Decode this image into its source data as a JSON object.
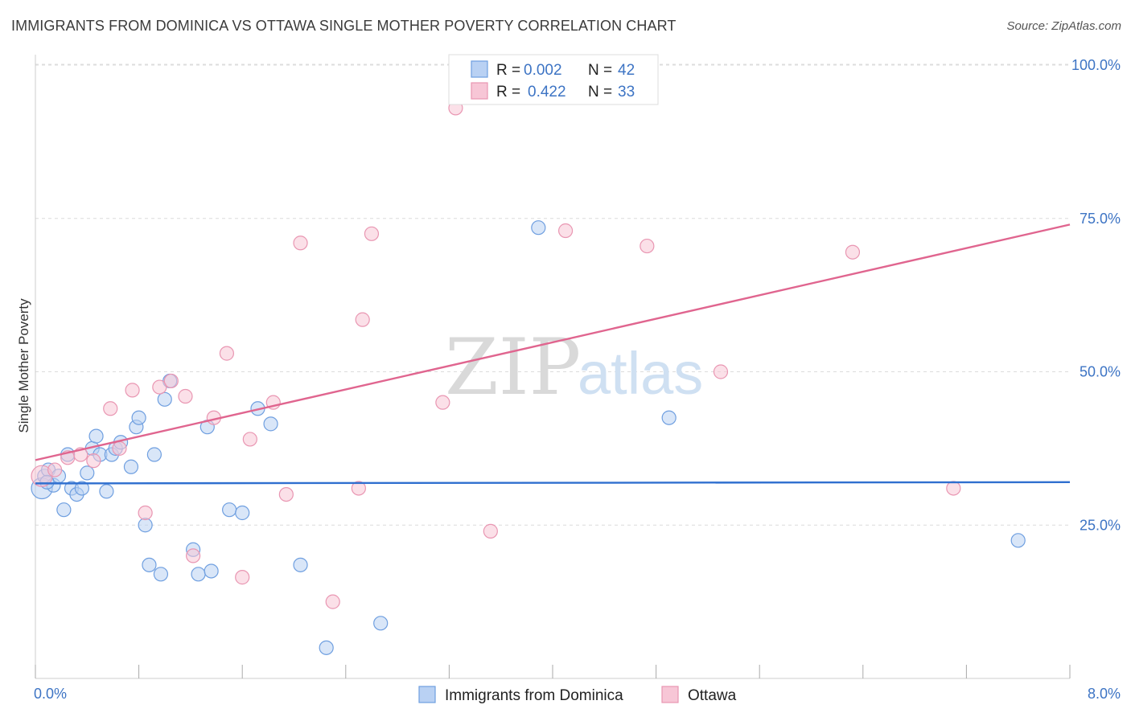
{
  "title": "IMMIGRANTS FROM DOMINICA VS OTTAWA SINGLE MOTHER POVERTY CORRELATION CHART",
  "source": "Source: ZipAtlas.com",
  "chart_data": {
    "type": "scatter",
    "ylabel": "Single Mother Poverty",
    "xlim": [
      0,
      8.0
    ],
    "ylim": [
      0,
      102
    ],
    "x_tick_labels": [
      "0.0%",
      "8.0%"
    ],
    "y_ticks": [
      25,
      50,
      75,
      100
    ],
    "y_tick_labels": [
      "25.0%",
      "50.0%",
      "75.0%",
      "100.0%"
    ],
    "grid": true,
    "watermark": {
      "zip": "ZIP",
      "atlas": "atlas"
    },
    "legend": {
      "placement": "top-center",
      "entries": [
        {
          "r_label": "R =",
          "r_value": "0.002",
          "n_label": "N =",
          "n_value": "42"
        },
        {
          "r_label": "R =",
          "r_value": "0.422",
          "n_label": "N =",
          "n_value": "33"
        }
      ]
    },
    "series": [
      {
        "name": "Immigrants from Dominica",
        "color": "#6f9fe0",
        "fill": "#b9d1f3",
        "trend_color": "#2f6fcf",
        "trend": [
          [
            0,
            31.8
          ],
          [
            8.0,
            32.0
          ]
        ],
        "points": [
          [
            0.05,
            31
          ],
          [
            0.07,
            33
          ],
          [
            0.1,
            34
          ],
          [
            0.14,
            31.5
          ],
          [
            0.18,
            33
          ],
          [
            0.22,
            27.5
          ],
          [
            0.25,
            36.5
          ],
          [
            0.28,
            31
          ],
          [
            0.32,
            30
          ],
          [
            0.36,
            31
          ],
          [
            0.4,
            33.5
          ],
          [
            0.44,
            37.5
          ],
          [
            0.47,
            39.5
          ],
          [
            0.5,
            36.5
          ],
          [
            0.55,
            30.5
          ],
          [
            0.59,
            36.5
          ],
          [
            0.62,
            37.5
          ],
          [
            0.66,
            38.5
          ],
          [
            0.74,
            34.5
          ],
          [
            0.78,
            41
          ],
          [
            0.8,
            42.5
          ],
          [
            0.85,
            25
          ],
          [
            0.88,
            18.5
          ],
          [
            0.92,
            36.5
          ],
          [
            0.97,
            17
          ],
          [
            1.0,
            45.5
          ],
          [
            1.04,
            48.5
          ],
          [
            1.22,
            21
          ],
          [
            1.26,
            17
          ],
          [
            1.33,
            41
          ],
          [
            1.36,
            17.5
          ],
          [
            1.5,
            27.5
          ],
          [
            1.6,
            27
          ],
          [
            1.72,
            44
          ],
          [
            1.82,
            41.5
          ],
          [
            2.05,
            18.5
          ],
          [
            2.25,
            5
          ],
          [
            2.67,
            9
          ],
          [
            3.89,
            73.5
          ],
          [
            4.9,
            42.5
          ],
          [
            7.6,
            22.5
          ],
          [
            0.09,
            32
          ]
        ]
      },
      {
        "name": "Ottawa",
        "color": "#e996b2",
        "fill": "#f7c6d6",
        "trend_color": "#e0658f",
        "trend": [
          [
            0,
            35.6
          ],
          [
            8.0,
            74.0
          ]
        ],
        "points": [
          [
            0.05,
            33
          ],
          [
            0.15,
            34
          ],
          [
            0.25,
            36
          ],
          [
            0.35,
            36.5
          ],
          [
            0.45,
            35.5
          ],
          [
            0.58,
            44
          ],
          [
            0.65,
            37.5
          ],
          [
            0.75,
            47
          ],
          [
            0.85,
            27
          ],
          [
            0.96,
            47.5
          ],
          [
            1.05,
            48.5
          ],
          [
            1.16,
            46
          ],
          [
            1.22,
            20
          ],
          [
            1.38,
            42.5
          ],
          [
            1.48,
            53
          ],
          [
            1.6,
            16.5
          ],
          [
            1.66,
            39
          ],
          [
            1.84,
            45
          ],
          [
            1.94,
            30
          ],
          [
            2.05,
            71
          ],
          [
            2.3,
            12.5
          ],
          [
            2.5,
            31
          ],
          [
            2.53,
            58.5
          ],
          [
            2.6,
            72.5
          ],
          [
            3.15,
            45
          ],
          [
            3.25,
            93
          ],
          [
            3.52,
            24
          ],
          [
            4.1,
            73
          ],
          [
            4.73,
            70.5
          ],
          [
            5.3,
            50
          ],
          [
            6.32,
            69.5
          ],
          [
            7.1,
            31
          ],
          [
            4.75,
            100
          ]
        ]
      }
    ]
  }
}
